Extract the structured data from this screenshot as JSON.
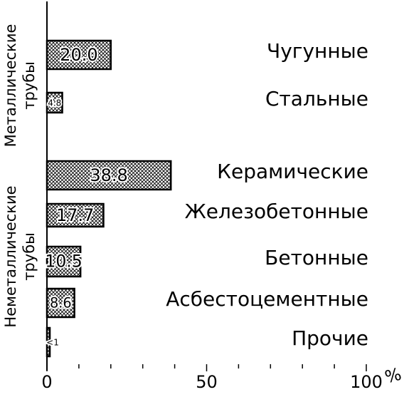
{
  "chart_data": {
    "type": "bar",
    "orientation": "horizontal",
    "color": "#000000",
    "categories": [
      "Чугунные",
      "Стальные",
      "Керамические",
      "Железобетонные",
      "Бетонные",
      "Асбестоцементные",
      "Прочие"
    ],
    "values": [
      20.0,
      4.8,
      38.8,
      17.7,
      10.5,
      8.6,
      0.9
    ],
    "value_labels": [
      "20.0",
      "4.8",
      "38.8",
      "17.7",
      "10.5",
      "8.6",
      "<1"
    ],
    "groups": [
      {
        "lines": [
          "Металлические",
          "трубы"
        ]
      },
      {
        "lines": [
          "Неметаллические",
          "трубы"
        ]
      }
    ],
    "xlim": [
      0,
      100
    ],
    "xticks": [
      0,
      50,
      100
    ],
    "minor_xticks": [
      10,
      20,
      30,
      40,
      60,
      70,
      80,
      90
    ],
    "xlabel": "%"
  }
}
